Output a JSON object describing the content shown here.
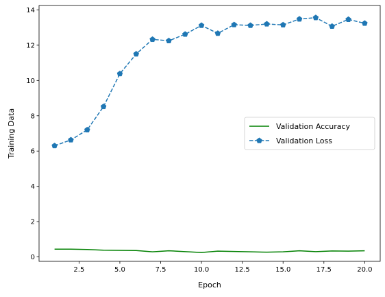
{
  "chart_data": {
    "type": "line",
    "title": "",
    "xlabel": "Epoch",
    "ylabel": "Training Data",
    "xlim": [
      0.05,
      20.95
    ],
    "ylim": [
      -0.25,
      14.25
    ],
    "xticks": [
      2.5,
      5.0,
      7.5,
      10.0,
      12.5,
      15.0,
      17.5,
      20.0
    ],
    "xtick_labels": [
      "2.5",
      "5.0",
      "7.5",
      "10.0",
      "12.5",
      "15.0",
      "17.5",
      "20.0"
    ],
    "yticks": [
      0,
      2,
      4,
      6,
      8,
      10,
      12,
      14
    ],
    "ytick_labels": [
      "0",
      "2",
      "4",
      "6",
      "8",
      "10",
      "12",
      "14"
    ],
    "grid": false,
    "legend_position": "center-right",
    "x": [
      1,
      2,
      3,
      4,
      5,
      6,
      7,
      8,
      9,
      10,
      11,
      12,
      13,
      14,
      15,
      16,
      17,
      18,
      19,
      20
    ],
    "series": [
      {
        "name": "Validation Accuracy",
        "color": "#008000",
        "style": "solid",
        "marker": "none",
        "values": [
          0.44,
          0.44,
          0.42,
          0.38,
          0.37,
          0.36,
          0.29,
          0.35,
          0.3,
          0.25,
          0.33,
          0.31,
          0.29,
          0.27,
          0.29,
          0.35,
          0.3,
          0.34,
          0.33,
          0.35
        ]
      },
      {
        "name": "Validation Loss",
        "color": "#1f77b4",
        "style": "dashed",
        "marker": "pentagon",
        "values": [
          6.3,
          6.63,
          7.2,
          8.52,
          10.38,
          11.5,
          12.33,
          12.25,
          12.62,
          13.12,
          12.67,
          13.16,
          13.12,
          13.2,
          13.15,
          13.48,
          13.56,
          13.07,
          13.46,
          13.24
        ]
      }
    ]
  }
}
